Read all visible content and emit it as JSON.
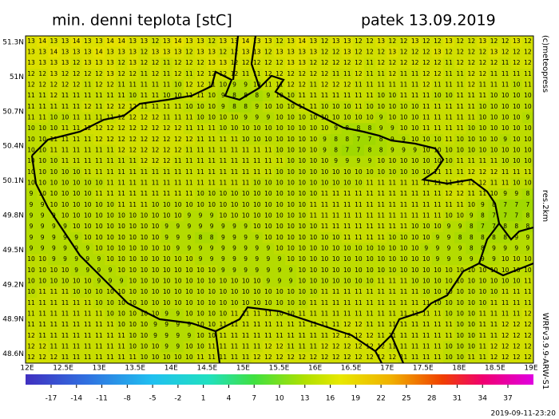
{
  "header": {
    "title": "min. denni teplota [stC]",
    "date": "patek 13.09.2019"
  },
  "map": {
    "lat_labels": [
      "51.3N",
      "51N",
      "50.7N",
      "50.4N",
      "50.1N",
      "49.8N",
      "49.5N",
      "49.2N",
      "48.9N",
      "48.6N"
    ],
    "lon_labels": [
      "12E",
      "12.5E",
      "13E",
      "13.5E",
      "14E",
      "14.5E",
      "15E",
      "15.5E",
      "16E",
      "16.5E",
      "17E",
      "17.5E",
      "18E",
      "18.5E",
      "19E"
    ],
    "grid": [
      [
        13,
        14,
        13,
        13,
        14,
        13,
        13,
        14,
        14,
        13,
        13,
        12,
        13,
        14,
        13,
        13,
        12,
        13,
        13,
        14,
        13,
        13,
        12,
        13,
        14,
        13,
        12,
        13,
        13,
        12,
        12,
        13,
        12,
        12,
        13,
        12,
        12,
        13,
        12,
        12,
        13,
        12,
        12,
        13,
        12
      ],
      [
        13,
        13,
        14,
        13,
        13,
        13,
        14,
        13,
        13,
        13,
        12,
        13,
        13,
        13,
        12,
        13,
        13,
        12,
        12,
        13,
        13,
        12,
        13,
        13,
        13,
        13,
        12,
        12,
        13,
        12,
        12,
        12,
        13,
        12,
        12,
        12,
        13,
        12,
        12,
        12,
        12,
        13,
        12,
        12,
        12
      ],
      [
        13,
        13,
        13,
        13,
        12,
        13,
        13,
        13,
        12,
        13,
        12,
        12,
        11,
        12,
        12,
        12,
        13,
        13,
        12,
        12,
        12,
        12,
        12,
        13,
        13,
        12,
        12,
        12,
        12,
        12,
        11,
        12,
        12,
        12,
        12,
        12,
        12,
        11,
        12,
        12,
        12,
        12,
        11,
        12,
        12
      ],
      [
        12,
        12,
        13,
        12,
        12,
        12,
        12,
        13,
        12,
        12,
        11,
        12,
        11,
        12,
        11,
        12,
        12,
        12,
        12,
        11,
        11,
        12,
        12,
        12,
        12,
        12,
        12,
        11,
        11,
        12,
        11,
        11,
        12,
        11,
        11,
        12,
        12,
        11,
        11,
        12,
        12,
        11,
        11,
        11,
        11
      ],
      [
        12,
        12,
        12,
        12,
        12,
        11,
        12,
        12,
        11,
        11,
        11,
        11,
        11,
        10,
        12,
        12,
        11,
        10,
        9,
        9,
        10,
        11,
        11,
        12,
        12,
        11,
        12,
        12,
        12,
        11,
        11,
        11,
        11,
        11,
        11,
        12,
        11,
        11,
        11,
        12,
        11,
        11,
        11,
        10,
        11
      ],
      [
        11,
        11,
        12,
        11,
        11,
        11,
        11,
        11,
        11,
        10,
        11,
        11,
        10,
        10,
        11,
        11,
        10,
        9,
        8,
        8,
        8,
        9,
        10,
        10,
        11,
        11,
        11,
        11,
        11,
        11,
        11,
        10,
        10,
        11,
        11,
        11,
        10,
        10,
        11,
        11,
        11,
        10,
        10,
        10,
        10
      ],
      [
        11,
        11,
        11,
        11,
        11,
        12,
        11,
        12,
        12,
        12,
        11,
        11,
        11,
        11,
        10,
        10,
        10,
        9,
        8,
        8,
        9,
        10,
        10,
        10,
        11,
        11,
        10,
        10,
        10,
        11,
        10,
        10,
        10,
        10,
        10,
        11,
        11,
        11,
        11,
        11,
        10,
        10,
        10,
        10,
        10
      ],
      [
        11,
        11,
        10,
        10,
        11,
        11,
        11,
        11,
        12,
        12,
        12,
        12,
        11,
        11,
        11,
        10,
        10,
        10,
        10,
        9,
        9,
        9,
        10,
        10,
        10,
        10,
        10,
        10,
        10,
        10,
        10,
        9,
        10,
        10,
        10,
        11,
        11,
        11,
        11,
        11,
        10,
        10,
        10,
        10,
        9
      ],
      [
        10,
        10,
        10,
        11,
        11,
        12,
        12,
        12,
        12,
        12,
        12,
        12,
        12,
        12,
        11,
        11,
        11,
        10,
        10,
        10,
        10,
        10,
        10,
        10,
        10,
        10,
        10,
        9,
        8,
        8,
        8,
        9,
        9,
        10,
        10,
        11,
        11,
        11,
        11,
        10,
        10,
        10,
        10,
        10,
        10
      ],
      [
        10,
        10,
        11,
        11,
        11,
        11,
        12,
        12,
        12,
        12,
        12,
        12,
        12,
        12,
        12,
        11,
        11,
        11,
        11,
        10,
        10,
        10,
        10,
        10,
        10,
        10,
        9,
        8,
        8,
        7,
        7,
        8,
        9,
        9,
        10,
        10,
        10,
        11,
        10,
        10,
        10,
        10,
        9,
        10,
        10
      ],
      [
        10,
        10,
        11,
        11,
        11,
        11,
        11,
        11,
        12,
        12,
        12,
        12,
        12,
        12,
        11,
        11,
        11,
        11,
        11,
        11,
        11,
        11,
        10,
        10,
        10,
        10,
        9,
        8,
        7,
        7,
        8,
        8,
        9,
        9,
        9,
        10,
        10,
        10,
        10,
        10,
        10,
        10,
        10,
        10,
        10
      ],
      [
        10,
        10,
        10,
        11,
        11,
        11,
        11,
        11,
        11,
        11,
        12,
        12,
        12,
        11,
        11,
        11,
        11,
        11,
        11,
        11,
        11,
        11,
        11,
        10,
        10,
        10,
        10,
        9,
        9,
        9,
        9,
        10,
        10,
        10,
        10,
        10,
        10,
        10,
        11,
        11,
        11,
        11,
        10,
        10,
        10
      ],
      [
        10,
        10,
        10,
        10,
        10,
        11,
        11,
        11,
        11,
        11,
        11,
        11,
        11,
        11,
        11,
        11,
        11,
        11,
        11,
        11,
        11,
        11,
        10,
        10,
        10,
        10,
        10,
        10,
        10,
        10,
        10,
        10,
        10,
        10,
        10,
        10,
        11,
        11,
        11,
        12,
        12,
        12,
        11,
        11,
        11
      ],
      [
        10,
        10,
        10,
        10,
        10,
        10,
        10,
        11,
        11,
        11,
        11,
        11,
        11,
        11,
        11,
        11,
        11,
        11,
        11,
        11,
        10,
        10,
        10,
        10,
        10,
        10,
        10,
        10,
        10,
        10,
        11,
        11,
        11,
        11,
        11,
        11,
        11,
        11,
        12,
        12,
        12,
        11,
        11,
        10,
        10
      ],
      [
        9,
        10,
        10,
        10,
        10,
        10,
        11,
        11,
        11,
        11,
        11,
        11,
        11,
        11,
        11,
        10,
        10,
        10,
        10,
        10,
        10,
        10,
        10,
        10,
        10,
        10,
        11,
        11,
        11,
        11,
        11,
        11,
        11,
        11,
        11,
        11,
        11,
        12,
        12,
        11,
        11,
        10,
        9,
        9,
        8
      ],
      [
        9,
        9,
        10,
        10,
        10,
        10,
        10,
        10,
        11,
        11,
        11,
        10,
        10,
        10,
        10,
        10,
        10,
        10,
        10,
        10,
        10,
        10,
        10,
        10,
        10,
        11,
        11,
        11,
        11,
        11,
        11,
        11,
        11,
        11,
        11,
        11,
        11,
        11,
        11,
        10,
        9,
        8,
        7,
        7,
        7
      ],
      [
        9,
        9,
        9,
        10,
        10,
        10,
        10,
        10,
        10,
        10,
        10,
        10,
        10,
        10,
        9,
        9,
        9,
        10,
        10,
        10,
        10,
        10,
        10,
        10,
        10,
        11,
        11,
        11,
        11,
        11,
        11,
        11,
        11,
        11,
        11,
        11,
        11,
        10,
        10,
        9,
        8,
        7,
        7,
        7,
        8
      ],
      [
        9,
        9,
        9,
        9,
        10,
        10,
        10,
        10,
        10,
        10,
        10,
        10,
        9,
        9,
        9,
        9,
        9,
        9,
        9,
        9,
        10,
        10,
        10,
        10,
        10,
        10,
        11,
        11,
        11,
        11,
        11,
        11,
        11,
        11,
        10,
        10,
        10,
        9,
        9,
        8,
        7,
        7,
        8,
        8,
        8
      ],
      [
        9,
        9,
        9,
        9,
        9,
        10,
        10,
        10,
        10,
        10,
        10,
        10,
        9,
        9,
        9,
        8,
        8,
        9,
        9,
        9,
        9,
        10,
        10,
        10,
        10,
        10,
        10,
        10,
        11,
        11,
        11,
        11,
        10,
        10,
        10,
        10,
        9,
        9,
        8,
        8,
        8,
        8,
        8,
        9,
        9
      ],
      [
        9,
        9,
        9,
        9,
        9,
        9,
        10,
        10,
        10,
        10,
        10,
        10,
        10,
        9,
        9,
        9,
        9,
        9,
        9,
        9,
        9,
        9,
        10,
        10,
        10,
        10,
        10,
        10,
        10,
        10,
        10,
        10,
        10,
        10,
        10,
        9,
        9,
        9,
        9,
        8,
        8,
        9,
        9,
        9,
        9
      ],
      [
        10,
        10,
        9,
        9,
        9,
        9,
        9,
        10,
        10,
        10,
        10,
        10,
        10,
        10,
        10,
        9,
        9,
        9,
        9,
        9,
        9,
        9,
        9,
        10,
        10,
        10,
        10,
        10,
        10,
        10,
        10,
        10,
        10,
        10,
        10,
        10,
        9,
        9,
        9,
        9,
        9,
        9,
        10,
        10,
        10
      ],
      [
        10,
        10,
        10,
        10,
        9,
        9,
        9,
        9,
        10,
        10,
        10,
        10,
        10,
        10,
        10,
        10,
        10,
        9,
        9,
        9,
        9,
        9,
        9,
        9,
        10,
        10,
        10,
        10,
        10,
        10,
        10,
        10,
        10,
        10,
        10,
        10,
        10,
        10,
        10,
        10,
        10,
        10,
        10,
        10,
        10
      ],
      [
        10,
        10,
        10,
        10,
        10,
        10,
        9,
        9,
        9,
        10,
        10,
        10,
        10,
        10,
        10,
        10,
        10,
        10,
        10,
        10,
        10,
        9,
        9,
        9,
        10,
        10,
        10,
        10,
        10,
        10,
        10,
        11,
        11,
        11,
        10,
        10,
        10,
        10,
        10,
        10,
        10,
        10,
        10,
        10,
        11
      ],
      [
        10,
        11,
        11,
        11,
        10,
        10,
        10,
        10,
        10,
        10,
        10,
        10,
        10,
        10,
        10,
        10,
        10,
        10,
        10,
        10,
        10,
        10,
        10,
        10,
        10,
        10,
        11,
        11,
        11,
        11,
        11,
        11,
        11,
        11,
        11,
        10,
        10,
        10,
        10,
        10,
        10,
        10,
        11,
        11,
        11
      ],
      [
        11,
        11,
        11,
        11,
        11,
        11,
        10,
        10,
        10,
        10,
        10,
        10,
        10,
        10,
        10,
        10,
        10,
        10,
        10,
        10,
        10,
        10,
        10,
        10,
        10,
        11,
        11,
        11,
        11,
        11,
        11,
        11,
        11,
        11,
        11,
        11,
        10,
        10,
        10,
        10,
        10,
        11,
        11,
        11,
        11
      ],
      [
        11,
        11,
        11,
        11,
        11,
        11,
        11,
        10,
        10,
        10,
        10,
        10,
        9,
        9,
        10,
        10,
        10,
        10,
        11,
        11,
        11,
        11,
        10,
        10,
        11,
        11,
        11,
        11,
        11,
        11,
        11,
        11,
        11,
        11,
        11,
        11,
        11,
        10,
        10,
        10,
        11,
        11,
        11,
        11,
        12
      ],
      [
        11,
        11,
        11,
        11,
        11,
        11,
        11,
        11,
        10,
        10,
        10,
        9,
        9,
        9,
        9,
        10,
        10,
        11,
        11,
        11,
        11,
        11,
        11,
        11,
        11,
        11,
        11,
        11,
        12,
        12,
        11,
        11,
        11,
        11,
        11,
        11,
        11,
        11,
        10,
        10,
        11,
        11,
        12,
        12,
        12
      ],
      [
        12,
        11,
        11,
        11,
        11,
        11,
        11,
        11,
        11,
        10,
        10,
        9,
        9,
        9,
        9,
        10,
        10,
        11,
        11,
        11,
        11,
        11,
        11,
        11,
        11,
        11,
        11,
        12,
        12,
        12,
        12,
        11,
        11,
        11,
        11,
        11,
        11,
        11,
        10,
        10,
        11,
        11,
        12,
        12,
        12
      ],
      [
        12,
        12,
        11,
        11,
        11,
        11,
        11,
        11,
        11,
        10,
        10,
        10,
        9,
        9,
        10,
        10,
        11,
        11,
        11,
        11,
        11,
        12,
        12,
        11,
        11,
        11,
        12,
        12,
        12,
        12,
        12,
        12,
        11,
        11,
        11,
        11,
        11,
        10,
        10,
        10,
        11,
        12,
        12,
        12,
        12
      ],
      [
        12,
        12,
        12,
        11,
        11,
        11,
        11,
        11,
        11,
        11,
        10,
        10,
        10,
        10,
        10,
        11,
        11,
        11,
        11,
        11,
        12,
        12,
        12,
        12,
        12,
        12,
        12,
        12,
        12,
        12,
        12,
        12,
        12,
        11,
        11,
        11,
        11,
        10,
        10,
        11,
        11,
        12,
        12,
        12,
        12
      ]
    ]
  },
  "colorbar": {
    "ticks": [
      -17,
      -14,
      -11,
      -8,
      -5,
      -2,
      1,
      4,
      7,
      10,
      13,
      16,
      19,
      22,
      25,
      28,
      31,
      34,
      37
    ]
  },
  "side": {
    "copyright": "(c)meteopress",
    "resolution": "res.2km",
    "model": "WRFv3.9.9-ARW-S1",
    "timestamp": "2019-09-11-23:20"
  }
}
